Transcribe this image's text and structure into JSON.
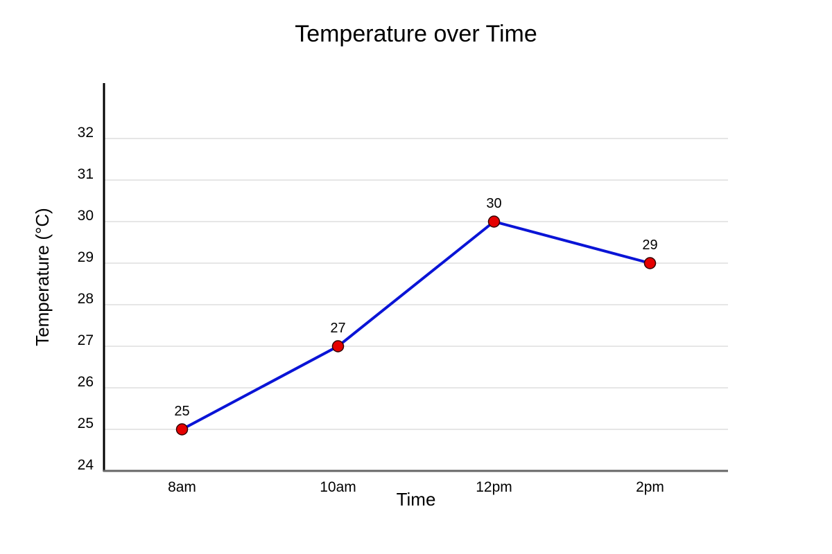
{
  "chart_data": {
    "type": "line",
    "title": "Temperature over Time",
    "xlabel": "Time",
    "ylabel": "Temperature (°C)",
    "categories": [
      "8am",
      "10am",
      "12pm",
      "2pm"
    ],
    "series": [
      {
        "values": [
          25,
          27,
          30,
          29
        ]
      }
    ],
    "ylim": [
      24,
      33
    ],
    "yticks": [
      24,
      25,
      26,
      27,
      28,
      29,
      30,
      31,
      32
    ],
    "grid": true,
    "legend": "none",
    "data_labels": true,
    "colors": {
      "line": "#0a14d6",
      "marker_fill": "#e50000",
      "marker_stroke": "#330000"
    }
  }
}
